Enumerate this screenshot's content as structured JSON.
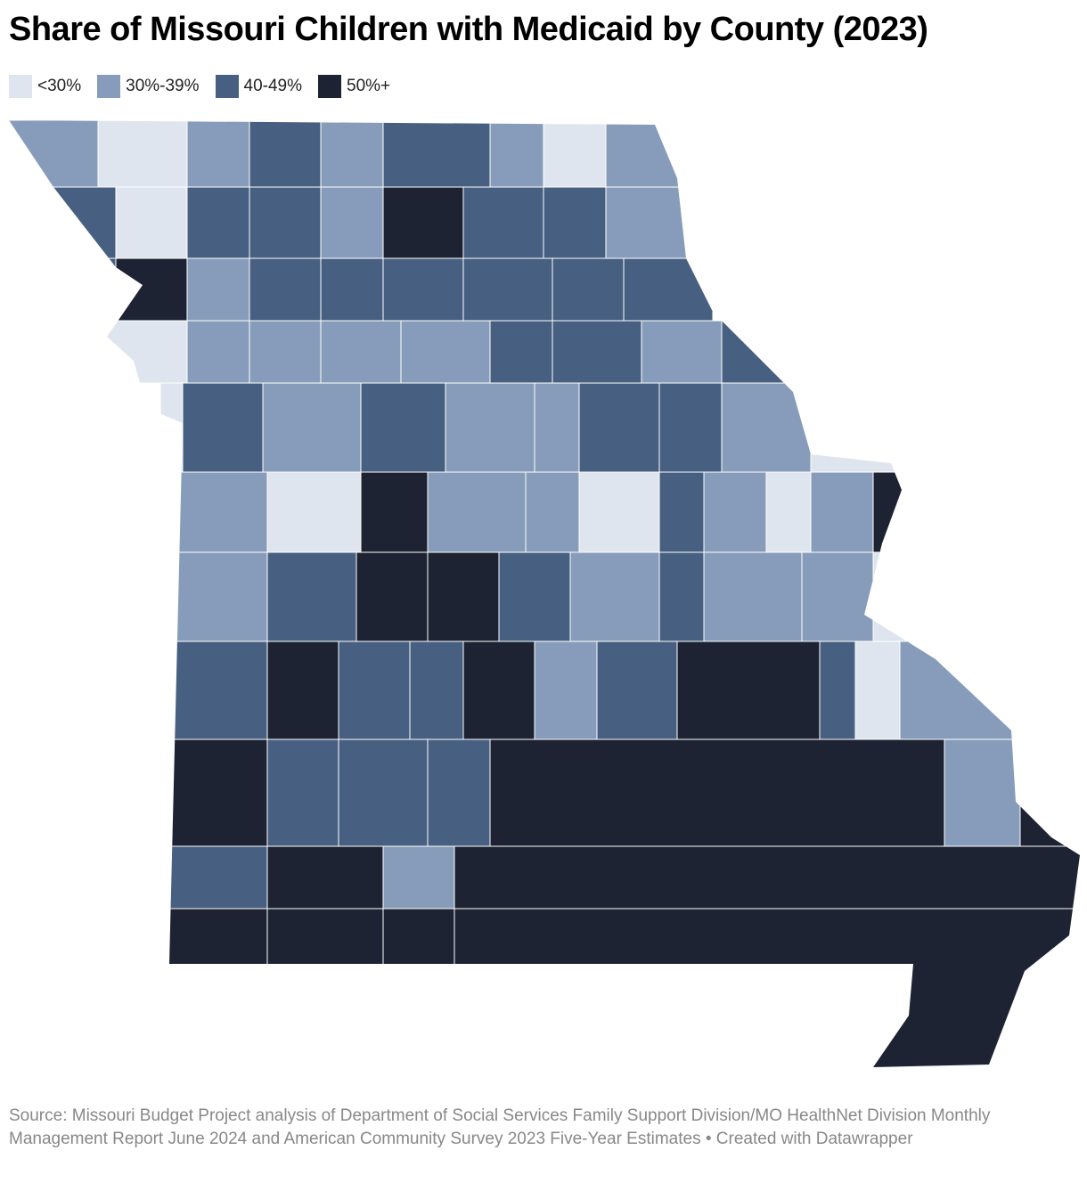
{
  "title": "Share of Missouri Children with Medicaid by County (2023)",
  "legend": [
    {
      "label": "<30%",
      "color": "#dfe5ee"
    },
    {
      "label": "30%-39%",
      "color": "#879cba"
    },
    {
      "label": "40-49%",
      "color": "#475f80"
    },
    {
      "label": "50%+",
      "color": "#1d2333"
    }
  ],
  "source": "Source: Missouri Budget Project analysis of Department of Social Services Family Support Division/MO HealthNet Division Monthly Management Report June 2024 and American Community Survey 2023 Five-Year Estimates • Created with Datawrapper"
}
